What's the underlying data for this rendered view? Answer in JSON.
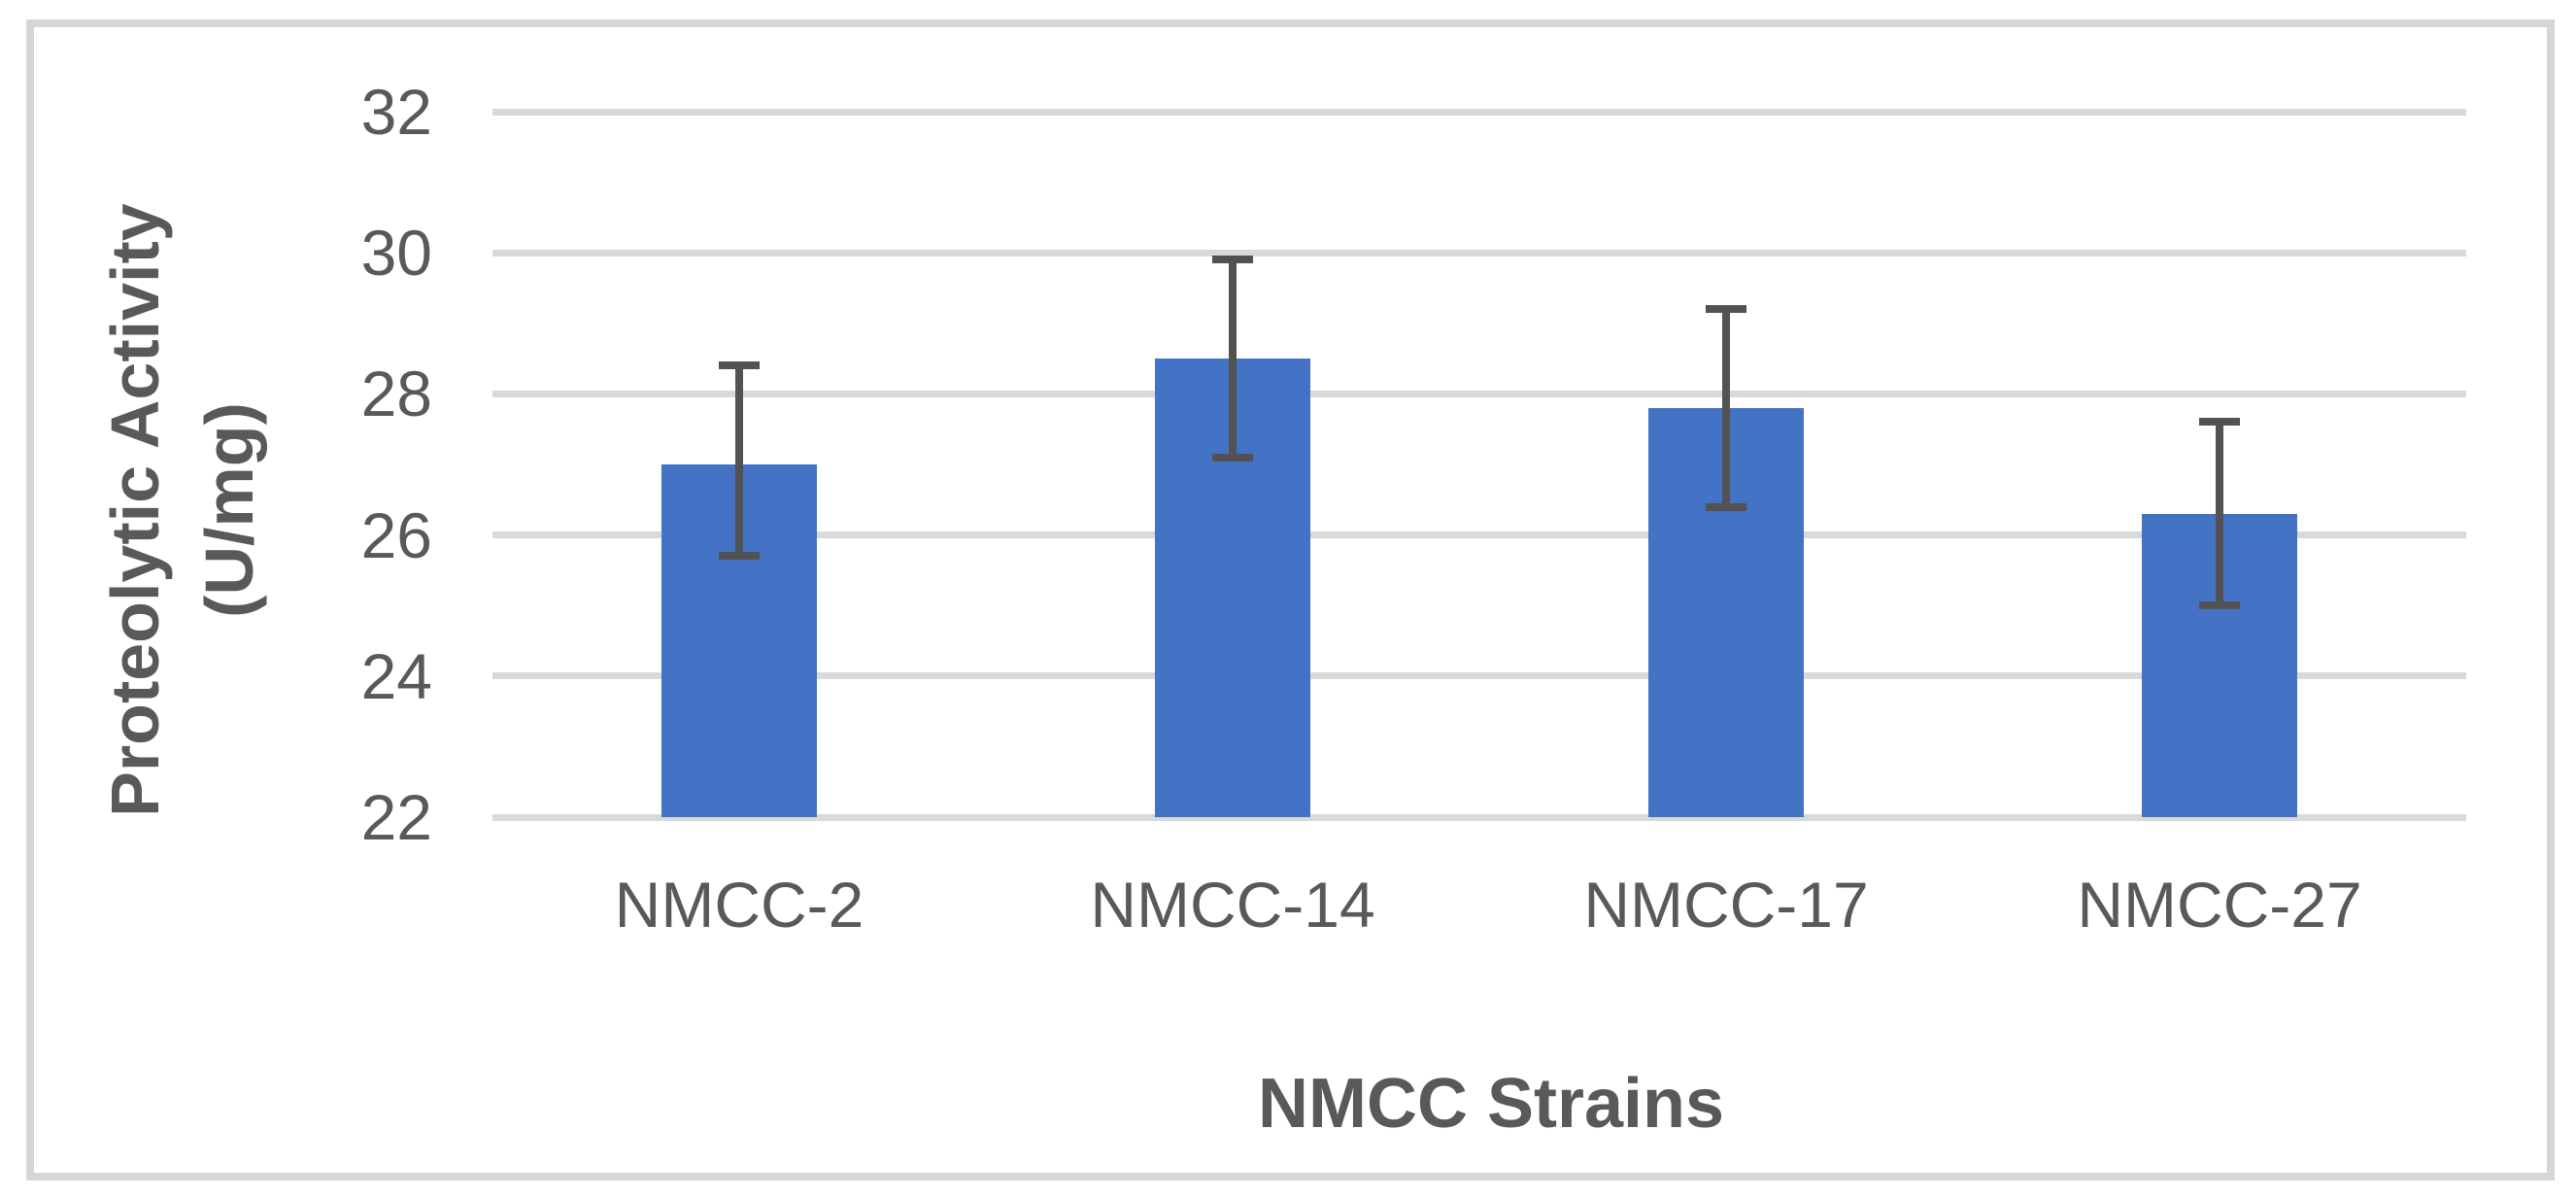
{
  "chart_data": {
    "type": "bar",
    "title": "",
    "categories": [
      "NMCC-2",
      "NMCC-14",
      "NMCC-17",
      "NMCC-27"
    ],
    "values": [
      27.0,
      28.5,
      27.8,
      26.3
    ],
    "error_bars": {
      "upper": [
        28.4,
        29.9,
        29.2,
        27.6
      ],
      "lower": [
        25.7,
        27.1,
        26.4,
        25.0
      ]
    },
    "xlabel": "NMCC Strains",
    "ylabel": "Proteolytic Activity (U/mg)",
    "ylabel_lines": [
      "Proteolytic Activity",
      "(U/mg)"
    ],
    "ylim": [
      22,
      32
    ],
    "yticks": [
      32,
      30,
      28,
      26,
      24,
      22
    ],
    "grid": "horizontal-major",
    "legend": "none",
    "bar_color": "#4472C4",
    "error_bar_color": "#525252",
    "gridline_color": "#D9D9D9",
    "text_color": "#595959",
    "frame_color": "#D6D6D6"
  }
}
